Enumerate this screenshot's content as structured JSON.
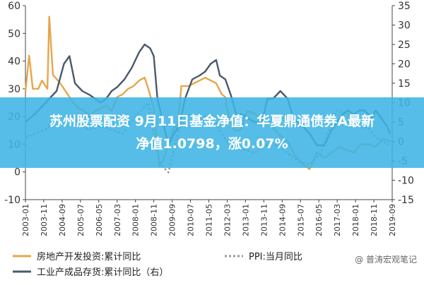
{
  "chart_data": {
    "type": "line",
    "x_dates": [
      "2003-01",
      "2003-11",
      "2004-09",
      "2005-07",
      "2006-05",
      "2007-03",
      "2008-01",
      "2008-11",
      "2009-09",
      "2010-07",
      "2011-05",
      "2012-03",
      "2013-01",
      "2013-11",
      "2014-09",
      "2015-07",
      "2016-05",
      "2017-03",
      "2018-01",
      "2018-11",
      "2019-09"
    ],
    "x_tick_labels": [
      "2003-01",
      "2003-11",
      "2004-09",
      "2005-07",
      "2006-05",
      "2007-03",
      "2008-01",
      "2008-11",
      "2009-09",
      "2010-07",
      "2011-05",
      "2012-03",
      "2013-01",
      "2013-11",
      "2014-09",
      "2015-07",
      "2016-05",
      "2017-03",
      "2018-01",
      "2018-11",
      "2019-09"
    ],
    "y_left": {
      "ylim": [
        -10,
        60
      ],
      "ticks": [
        -10,
        0,
        10,
        20,
        30,
        40,
        50,
        60
      ]
    },
    "y_right": {
      "ylim": [
        -15,
        35
      ],
      "ticks": [
        -15,
        -10,
        -5,
        0,
        5,
        10,
        15,
        20,
        25,
        30,
        35
      ]
    },
    "grid": false,
    "series": [
      {
        "name": "房地产开发投资:累计同比",
        "axis": "left",
        "color": "#e8a54a",
        "style": "solid",
        "points": [
          [
            "2003-01",
            29
          ],
          [
            "2003-03",
            42
          ],
          [
            "2003-05",
            30
          ],
          [
            "2003-08",
            30
          ],
          [
            "2003-10",
            33
          ],
          [
            "2004-01",
            30
          ],
          [
            "2004-02",
            56
          ],
          [
            "2004-04",
            35
          ],
          [
            "2004-08",
            32
          ],
          [
            "2004-12",
            28
          ],
          [
            "2005-03",
            25
          ],
          [
            "2005-06",
            23
          ],
          [
            "2005-09",
            22
          ],
          [
            "2005-12",
            20
          ],
          [
            "2006-03",
            22
          ],
          [
            "2006-06",
            23
          ],
          [
            "2006-09",
            24
          ],
          [
            "2006-12",
            22
          ],
          [
            "2007-03",
            27
          ],
          [
            "2007-06",
            28
          ],
          [
            "2007-09",
            30
          ],
          [
            "2007-12",
            31
          ],
          [
            "2008-03",
            33
          ],
          [
            "2008-06",
            34
          ],
          [
            "2008-08",
            30
          ],
          [
            "2008-11",
            23
          ],
          [
            "2009-02",
            2
          ],
          [
            "2009-04",
            4
          ],
          [
            "2009-07",
            10
          ],
          [
            "2009-10",
            16
          ],
          [
            "2009-12",
            16
          ],
          [
            "2010-02",
            31
          ],
          [
            "2010-06",
            31
          ],
          [
            "2010-09",
            32
          ],
          [
            "2010-12",
            33
          ],
          [
            "2011-03",
            34
          ],
          [
            "2011-06",
            33
          ],
          [
            "2011-09",
            32
          ],
          [
            "2011-12",
            28
          ],
          [
            "2012-02",
            27
          ],
          [
            "2012-04",
            19
          ],
          [
            "2012-07",
            15
          ],
          [
            "2012-10",
            15
          ],
          [
            "2013-02",
            22
          ],
          [
            "2013-06",
            21
          ],
          [
            "2013-10",
            19
          ],
          [
            "2013-12",
            20
          ],
          [
            "2014-04",
            16
          ],
          [
            "2014-08",
            13
          ],
          [
            "2014-12",
            11
          ],
          [
            "2015-04",
            6
          ],
          [
            "2015-08",
            3
          ],
          [
            "2015-12",
            1
          ],
          [
            "2016-04",
            7
          ],
          [
            "2016-08",
            5
          ],
          [
            "2016-12",
            7
          ],
          [
            "2017-04",
            9
          ],
          [
            "2017-08",
            8
          ],
          [
            "2017-12",
            7
          ],
          [
            "2018-04",
            10
          ],
          [
            "2018-08",
            10
          ],
          [
            "2018-12",
            9
          ],
          [
            "2019-04",
            12
          ],
          [
            "2019-08",
            11
          ]
        ]
      },
      {
        "name": "PPI:当月同比",
        "axis": "right",
        "color": "#9a9a9a",
        "style": "dashed",
        "points": [
          [
            "2003-01",
            1
          ],
          [
            "2003-06",
            2
          ],
          [
            "2003-12",
            3
          ],
          [
            "2004-06",
            6
          ],
          [
            "2004-12",
            7
          ],
          [
            "2005-06",
            5
          ],
          [
            "2005-12",
            3
          ],
          [
            "2006-06",
            4
          ],
          [
            "2006-12",
            3
          ],
          [
            "2007-06",
            2
          ],
          [
            "2007-12",
            6
          ],
          [
            "2008-06",
            9
          ],
          [
            "2008-08",
            10
          ],
          [
            "2008-12",
            -1
          ],
          [
            "2009-03",
            -6
          ],
          [
            "2009-07",
            -8
          ],
          [
            "2009-12",
            2
          ],
          [
            "2010-05",
            7
          ],
          [
            "2010-12",
            6
          ],
          [
            "2011-06",
            7
          ],
          [
            "2011-12",
            2
          ],
          [
            "2012-06",
            -2
          ],
          [
            "2012-12",
            -2
          ],
          [
            "2013-06",
            -3
          ],
          [
            "2013-12",
            -1
          ],
          [
            "2014-06",
            -1
          ],
          [
            "2014-12",
            -3
          ],
          [
            "2015-06",
            -5
          ],
          [
            "2015-12",
            -6
          ],
          [
            "2016-06",
            -3
          ],
          [
            "2016-12",
            5
          ],
          [
            "2017-03",
            8
          ],
          [
            "2017-09",
            7
          ],
          [
            "2018-03",
            4
          ],
          [
            "2018-09",
            3
          ],
          [
            "2018-12",
            1
          ],
          [
            "2019-04",
            0
          ],
          [
            "2019-08",
            -1
          ]
        ]
      },
      {
        "name": "工业产成品存货:累计同比（右）",
        "axis": "right",
        "color": "#4a5a6a",
        "style": "solid",
        "points": [
          [
            "2003-01",
            5
          ],
          [
            "2003-06",
            7
          ],
          [
            "2003-12",
            10
          ],
          [
            "2004-06",
            13
          ],
          [
            "2004-10",
            20
          ],
          [
            "2005-01",
            22
          ],
          [
            "2005-04",
            15
          ],
          [
            "2005-08",
            13
          ],
          [
            "2005-12",
            12
          ],
          [
            "2006-03",
            11
          ],
          [
            "2006-06",
            10
          ],
          [
            "2006-09",
            11
          ],
          [
            "2006-12",
            13
          ],
          [
            "2007-03",
            14
          ],
          [
            "2007-07",
            16
          ],
          [
            "2007-11",
            19
          ],
          [
            "2008-03",
            23
          ],
          [
            "2008-06",
            25
          ],
          [
            "2008-09",
            24
          ],
          [
            "2008-11",
            22
          ],
          [
            "2009-01",
            11
          ],
          [
            "2009-04",
            5
          ],
          [
            "2009-07",
            -1
          ],
          [
            "2009-10",
            2
          ],
          [
            "2010-01",
            4
          ],
          [
            "2010-04",
            11
          ],
          [
            "2010-08",
            16
          ],
          [
            "2010-12",
            17
          ],
          [
            "2011-03",
            18
          ],
          [
            "2011-06",
            20
          ],
          [
            "2011-09",
            21
          ],
          [
            "2011-11",
            17
          ],
          [
            "2012-02",
            16
          ],
          [
            "2012-05",
            12
          ],
          [
            "2012-08",
            7
          ],
          [
            "2012-11",
            7
          ],
          [
            "2013-02",
            6
          ],
          [
            "2013-06",
            5
          ],
          [
            "2013-10",
            5
          ],
          [
            "2014-01",
            11
          ],
          [
            "2014-04",
            11
          ],
          [
            "2014-08",
            13
          ],
          [
            "2014-12",
            11
          ],
          [
            "2015-03",
            6
          ],
          [
            "2015-08",
            4
          ],
          [
            "2015-12",
            2
          ],
          [
            "2016-04",
            -1
          ],
          [
            "2016-08",
            -1
          ],
          [
            "2016-12",
            3
          ],
          [
            "2017-03",
            5
          ],
          [
            "2017-06",
            7
          ],
          [
            "2017-09",
            8
          ],
          [
            "2017-12",
            7
          ],
          [
            "2018-03",
            8
          ],
          [
            "2018-06",
            8
          ],
          [
            "2018-10",
            6
          ],
          [
            "2018-12",
            8
          ],
          [
            "2019-03",
            6
          ],
          [
            "2019-06",
            4
          ],
          [
            "2019-08",
            2
          ]
        ]
      }
    ]
  },
  "legend": [
    {
      "name": "房地产开发投资:累计同比",
      "color": "#e8a54a",
      "style": "solid"
    },
    {
      "name": "PPI:当月同比",
      "color": "#9a9a9a",
      "style": "dashed"
    },
    {
      "name": "工业产成品存货:累计同比（右）",
      "color": "#4a5a6a",
      "style": "solid"
    }
  ],
  "watermark": "@ 普涛宏观笔记",
  "overlay": {
    "line1": "苏州股票配资 9月11日基金净值：华夏鼎通债券A最新",
    "line2": "净值1.0798，涨0.07%",
    "color": "#3eb4e4"
  }
}
